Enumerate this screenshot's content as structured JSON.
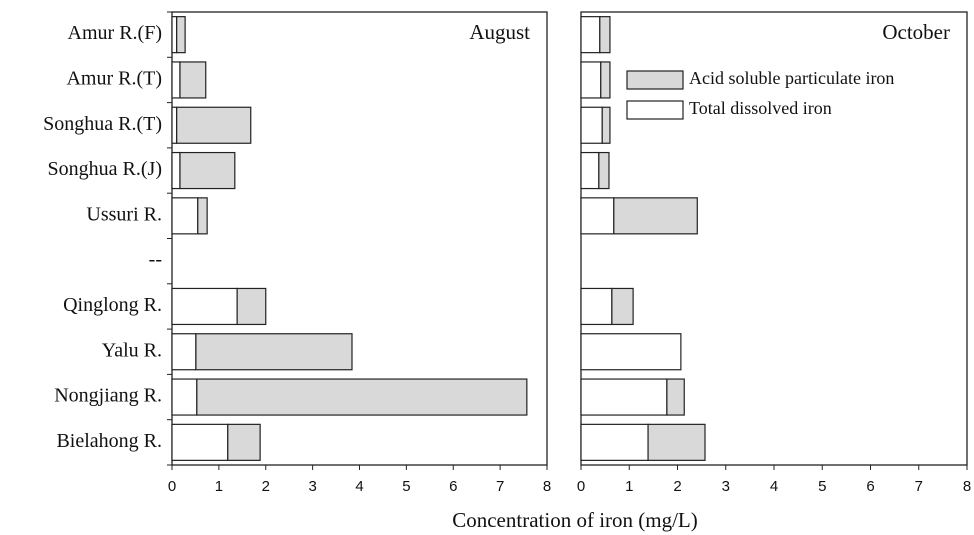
{
  "chart_data": [
    {
      "type": "bar",
      "orientation": "horizontal",
      "title": "August",
      "categories": [
        "Amur R.(F)",
        "Amur R.(T)",
        "Songhua R.(T)",
        "Songhua R.(J)",
        "Ussuri R.",
        "--",
        "Qinglong R.",
        "Yalu R.",
        "Nongjiang R.",
        "Bielahong R."
      ],
      "xlabel": "Concentration of iron (mg/L)",
      "xlim": [
        0,
        8
      ],
      "xticks": [
        0,
        1,
        2,
        3,
        4,
        5,
        6,
        7,
        8
      ],
      "stacked": true,
      "series": [
        {
          "color": "#ffffff",
          "values": [
            0.1,
            0.17,
            0.1,
            0.17,
            0.55,
            null,
            1.39,
            0.51,
            0.53,
            1.19
          ]
        },
        {
          "color": "#d9d9d9",
          "values": [
            0.18,
            0.55,
            1.58,
            1.17,
            0.2,
            null,
            0.61,
            3.33,
            7.04,
            0.69
          ]
        }
      ]
    },
    {
      "type": "bar",
      "orientation": "horizontal",
      "title": "October",
      "xlim": [
        0,
        8
      ],
      "xticks": [
        0,
        1,
        2,
        3,
        4,
        5,
        6,
        7,
        8
      ],
      "stacked": true,
      "legend": "upper right",
      "series": [
        {
          "name": "Total dissolved iron",
          "color": "#ffffff",
          "values": [
            0.39,
            0.41,
            0.44,
            0.37,
            0.68,
            null,
            0.64,
            2.07,
            1.78,
            1.39
          ]
        },
        {
          "name": "Acid soluble particulate iron",
          "color": "#d9d9d9",
          "values": [
            0.21,
            0.19,
            0.16,
            0.21,
            1.73,
            null,
            0.44,
            0,
            0.36,
            1.18
          ]
        }
      ]
    }
  ]
}
